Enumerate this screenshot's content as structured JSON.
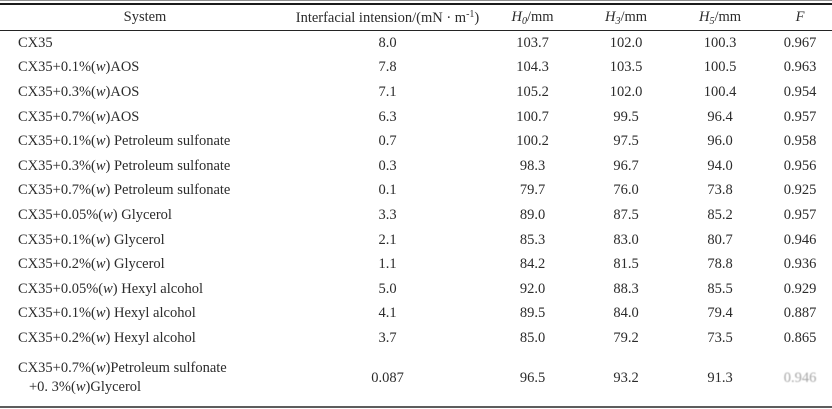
{
  "table": {
    "columns": {
      "system": "System",
      "tension": {
        "pre": "Interfacial intension/(mN · m",
        "sup": "-1",
        "post": ")"
      },
      "h0": {
        "pre": "H",
        "sub": "0",
        "post": "/mm"
      },
      "h3": {
        "pre": "H",
        "sub": "3",
        "post": "/mm"
      },
      "h5": {
        "pre": "H",
        "sub": "5",
        "post": "/mm"
      },
      "f": "F"
    },
    "rows": [
      {
        "system_lines": [
          "CX35"
        ],
        "tension": "8.0",
        "h0": "103.7",
        "h3": "102.0",
        "h5": "100.3",
        "f": "0.967",
        "f_faded": false
      },
      {
        "system_lines": [
          "CX35+0.1%(w)AOS"
        ],
        "tension": "7.8",
        "h0": "104.3",
        "h3": "103.5",
        "h5": "100.5",
        "f": "0.963",
        "f_faded": false
      },
      {
        "system_lines": [
          "CX35+0.3%(w)AOS"
        ],
        "tension": "7.1",
        "h0": "105.2",
        "h3": "102.0",
        "h5": "100.4",
        "f": "0.954",
        "f_faded": false
      },
      {
        "system_lines": [
          "CX35+0.7%(w)AOS"
        ],
        "tension": "6.3",
        "h0": "100.7",
        "h3": "99.5",
        "h5": "96.4",
        "f": "0.957",
        "f_faded": false
      },
      {
        "system_lines": [
          "CX35+0.1%(w) Petroleum sulfonate"
        ],
        "tension": "0.7",
        "h0": "100.2",
        "h3": "97.5",
        "h5": "96.0",
        "f": "0.958",
        "f_faded": false
      },
      {
        "system_lines": [
          "CX35+0.3%(w) Petroleum sulfonate"
        ],
        "tension": "0.3",
        "h0": "98.3",
        "h3": "96.7",
        "h5": "94.0",
        "f": "0.956",
        "f_faded": false
      },
      {
        "system_lines": [
          "CX35+0.7%(w) Petroleum sulfonate"
        ],
        "tension": "0.1",
        "h0": "79.7",
        "h3": "76.0",
        "h5": "73.8",
        "f": "0.925",
        "f_faded": false
      },
      {
        "system_lines": [
          "CX35+0.05%(w) Glycerol"
        ],
        "tension": "3.3",
        "h0": "89.0",
        "h3": "87.5",
        "h5": "85.2",
        "f": "0.957",
        "f_faded": false
      },
      {
        "system_lines": [
          "CX35+0.1%(w) Glycerol"
        ],
        "tension": "2.1",
        "h0": "85.3",
        "h3": "83.0",
        "h5": "80.7",
        "f": "0.946",
        "f_faded": false
      },
      {
        "system_lines": [
          "CX35+0.2%(w) Glycerol"
        ],
        "tension": "1.1",
        "h0": "84.2",
        "h3": "81.5",
        "h5": "78.8",
        "f": "0.936",
        "f_faded": false
      },
      {
        "system_lines": [
          "CX35+0.05%(w) Hexyl alcohol"
        ],
        "tension": "5.0",
        "h0": "92.0",
        "h3": "88.3",
        "h5": "85.5",
        "f": "0.929",
        "f_faded": false
      },
      {
        "system_lines": [
          "CX35+0.1%(w) Hexyl alcohol"
        ],
        "tension": "4.1",
        "h0": "89.5",
        "h3": "84.0",
        "h5": "79.4",
        "f": "0.887",
        "f_faded": false
      },
      {
        "system_lines": [
          "CX35+0.2%(w) Hexyl alcohol"
        ],
        "tension": "3.7",
        "h0": "85.0",
        "h3": "79.2",
        "h5": "73.5",
        "f": "0.865",
        "f_faded": false
      },
      {
        "system_lines": [
          "CX35+0.7%(w)Petroleum sulfonate",
          "+0. 3%(w)Glycerol"
        ],
        "tension": "0.087",
        "h0": "96.5",
        "h3": "93.2",
        "h5": "91.3",
        "f": "0.946",
        "f_faded": true
      }
    ]
  },
  "colors": {
    "text": "#2b2b2b",
    "top_rule": "#1c1c1c",
    "header_rule": "#242424",
    "bottom_rule": "#5d5d5d",
    "faded_text": "#a6a6a6",
    "background": "#ffffff"
  }
}
